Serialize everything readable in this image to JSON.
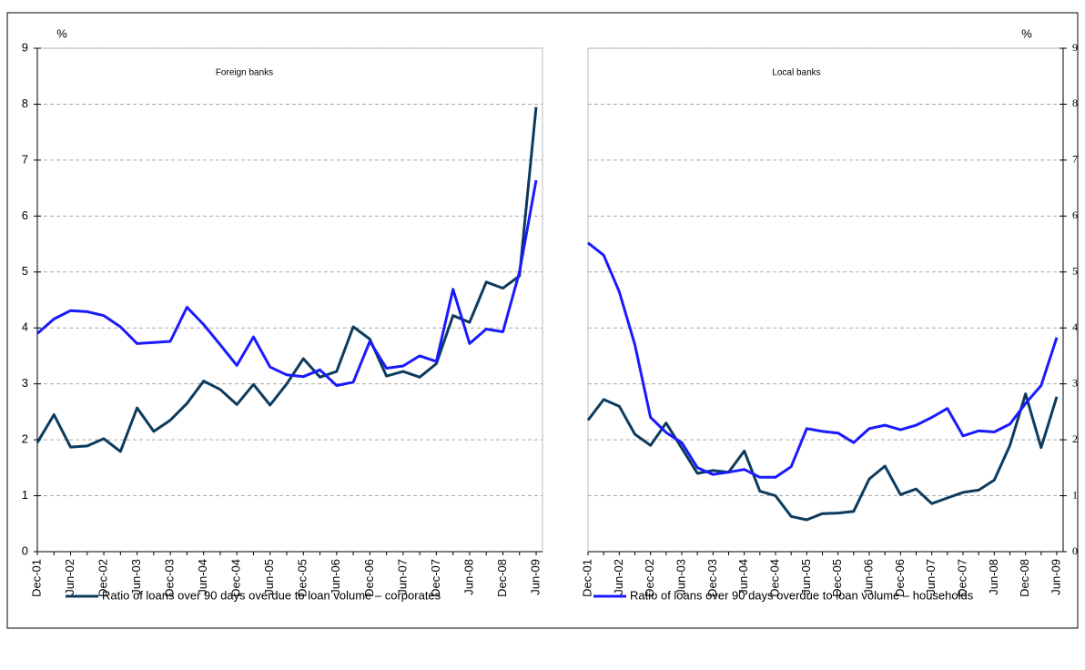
{
  "chart_data": [
    {
      "type": "line",
      "title": "Foreign banks",
      "y_label": "%",
      "categories": [
        "Dec-01",
        null,
        "Jun-02",
        null,
        "Dec-02",
        null,
        "Jun-03",
        null,
        "Dec-03",
        null,
        "Jun-04",
        null,
        "Dec-04",
        null,
        "Jun-05",
        null,
        "Dec-05",
        null,
        "Jun-06",
        null,
        "Dec-06",
        null,
        "Jun-07",
        null,
        "Dec-07",
        null,
        "Jun-08",
        null,
        "Dec-08",
        null,
        "Jun-09"
      ],
      "ylim": [
        0,
        9
      ],
      "yticks": [
        0,
        1,
        2,
        3,
        4,
        5,
        6,
        7,
        8,
        9
      ],
      "grid": true,
      "series": [
        {
          "name": "Ratio of loans over 90 days overdue to loan volume – corporates",
          "color": "#0d3b5e",
          "values": [
            1.95,
            2.45,
            1.87,
            1.89,
            2.02,
            1.79,
            2.57,
            2.15,
            2.35,
            2.65,
            3.05,
            2.9,
            2.63,
            2.99,
            2.62,
            3.0,
            3.45,
            3.12,
            3.22,
            4.02,
            3.8,
            3.14,
            3.22,
            3.12,
            3.36,
            4.22,
            4.1,
            4.82,
            4.71,
            4.93,
            7.95
          ]
        },
        {
          "name": "Ratio of loans over 90 days overdue to loan volume – households",
          "color": "#1a1aff",
          "values": [
            3.9,
            4.16,
            4.31,
            4.29,
            4.22,
            4.02,
            3.72,
            3.74,
            3.76,
            4.37,
            4.06,
            3.7,
            3.33,
            3.84,
            3.3,
            3.16,
            3.13,
            3.25,
            2.97,
            3.03,
            3.76,
            3.28,
            3.32,
            3.5,
            3.4,
            4.69,
            3.72,
            3.98,
            3.93,
            5.0,
            6.64
          ]
        }
      ]
    },
    {
      "type": "line",
      "title": "Local banks",
      "y_label": "%",
      "categories": [
        "Dec-01",
        null,
        "Jun-02",
        null,
        "Dec-02",
        null,
        "Jun-03",
        null,
        "Dec-03",
        null,
        "Jun-04",
        null,
        "Dec-04",
        null,
        "Jun-05",
        null,
        "Dec-05",
        null,
        "Jun-06",
        null,
        "Dec-06",
        null,
        "Jun-07",
        null,
        "Dec-07",
        null,
        "Jun-08",
        null,
        "Dec-08",
        null,
        "Jun-09"
      ],
      "ylim": [
        0,
        9
      ],
      "yticks": [
        0,
        1,
        2,
        3,
        4,
        5,
        6,
        7,
        8,
        9
      ],
      "grid": true,
      "series": [
        {
          "color": "#0d3b5e",
          "values": [
            2.35,
            2.72,
            2.6,
            2.1,
            1.9,
            2.3,
            1.85,
            1.4,
            1.45,
            1.42,
            1.8,
            1.08,
            1.0,
            0.63,
            0.57,
            0.68,
            0.69,
            0.72,
            1.3,
            1.53,
            1.02,
            1.12,
            0.86,
            0.96,
            1.06,
            1.1,
            1.28,
            1.9,
            2.82,
            1.86,
            2.77
          ]
        },
        {
          "color": "#1a1aff",
          "values": [
            5.52,
            5.3,
            4.65,
            3.7,
            2.4,
            2.13,
            1.95,
            1.5,
            1.38,
            1.42,
            1.47,
            1.33,
            1.33,
            1.52,
            2.2,
            2.15,
            2.12,
            1.95,
            2.2,
            2.26,
            2.18,
            2.26,
            2.4,
            2.56,
            2.07,
            2.16,
            2.14,
            2.28,
            2.65,
            2.97,
            3.83
          ]
        }
      ]
    }
  ]
}
